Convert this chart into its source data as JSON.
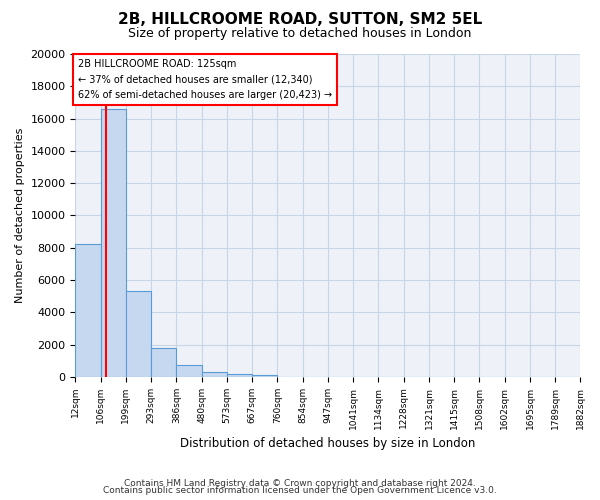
{
  "title": "2B, HILLCROOME ROAD, SUTTON, SM2 5EL",
  "subtitle": "Size of property relative to detached houses in London",
  "xlabel": "Distribution of detached houses by size in London",
  "ylabel": "Number of detached properties",
  "bar_values": [
    8200,
    16600,
    5300,
    1800,
    750,
    300,
    150,
    100,
    0,
    0,
    0,
    0,
    0,
    0,
    0,
    0,
    0,
    0,
    0,
    0
  ],
  "bin_labels": [
    "12sqm",
    "106sqm",
    "199sqm",
    "293sqm",
    "386sqm",
    "480sqm",
    "573sqm",
    "667sqm",
    "760sqm",
    "854sqm",
    "947sqm",
    "1041sqm",
    "1134sqm",
    "1228sqm",
    "1321sqm",
    "1415sqm",
    "1508sqm",
    "1602sqm",
    "1695sqm",
    "1789sqm",
    "1882sqm"
  ],
  "bar_color": "#c5d8f0",
  "bar_edge_color": "#5b9bd5",
  "property_label": "2B HILLCROOME ROAD: 125sqm",
  "pct_smaller": 37,
  "pct_smaller_count": "12,340",
  "pct_larger": 62,
  "pct_larger_count": "20,423",
  "red_line_x": 125,
  "ylim": [
    0,
    20000
  ],
  "yticks": [
    0,
    2000,
    4000,
    6000,
    8000,
    10000,
    12000,
    14000,
    16000,
    18000,
    20000
  ],
  "footnote_line1": "Contains HM Land Registry data © Crown copyright and database right 2024.",
  "footnote_line2": "Contains public sector information licensed under the Open Government Licence v3.0.",
  "background_color": "#eef2f8",
  "grid_color": "#c8d4e8",
  "bin_edges": [
    12,
    106,
    199,
    293,
    386,
    480,
    573,
    667,
    760,
    854,
    947,
    1041,
    1134,
    1228,
    1321,
    1415,
    1508,
    1602,
    1695,
    1789,
    1882
  ]
}
